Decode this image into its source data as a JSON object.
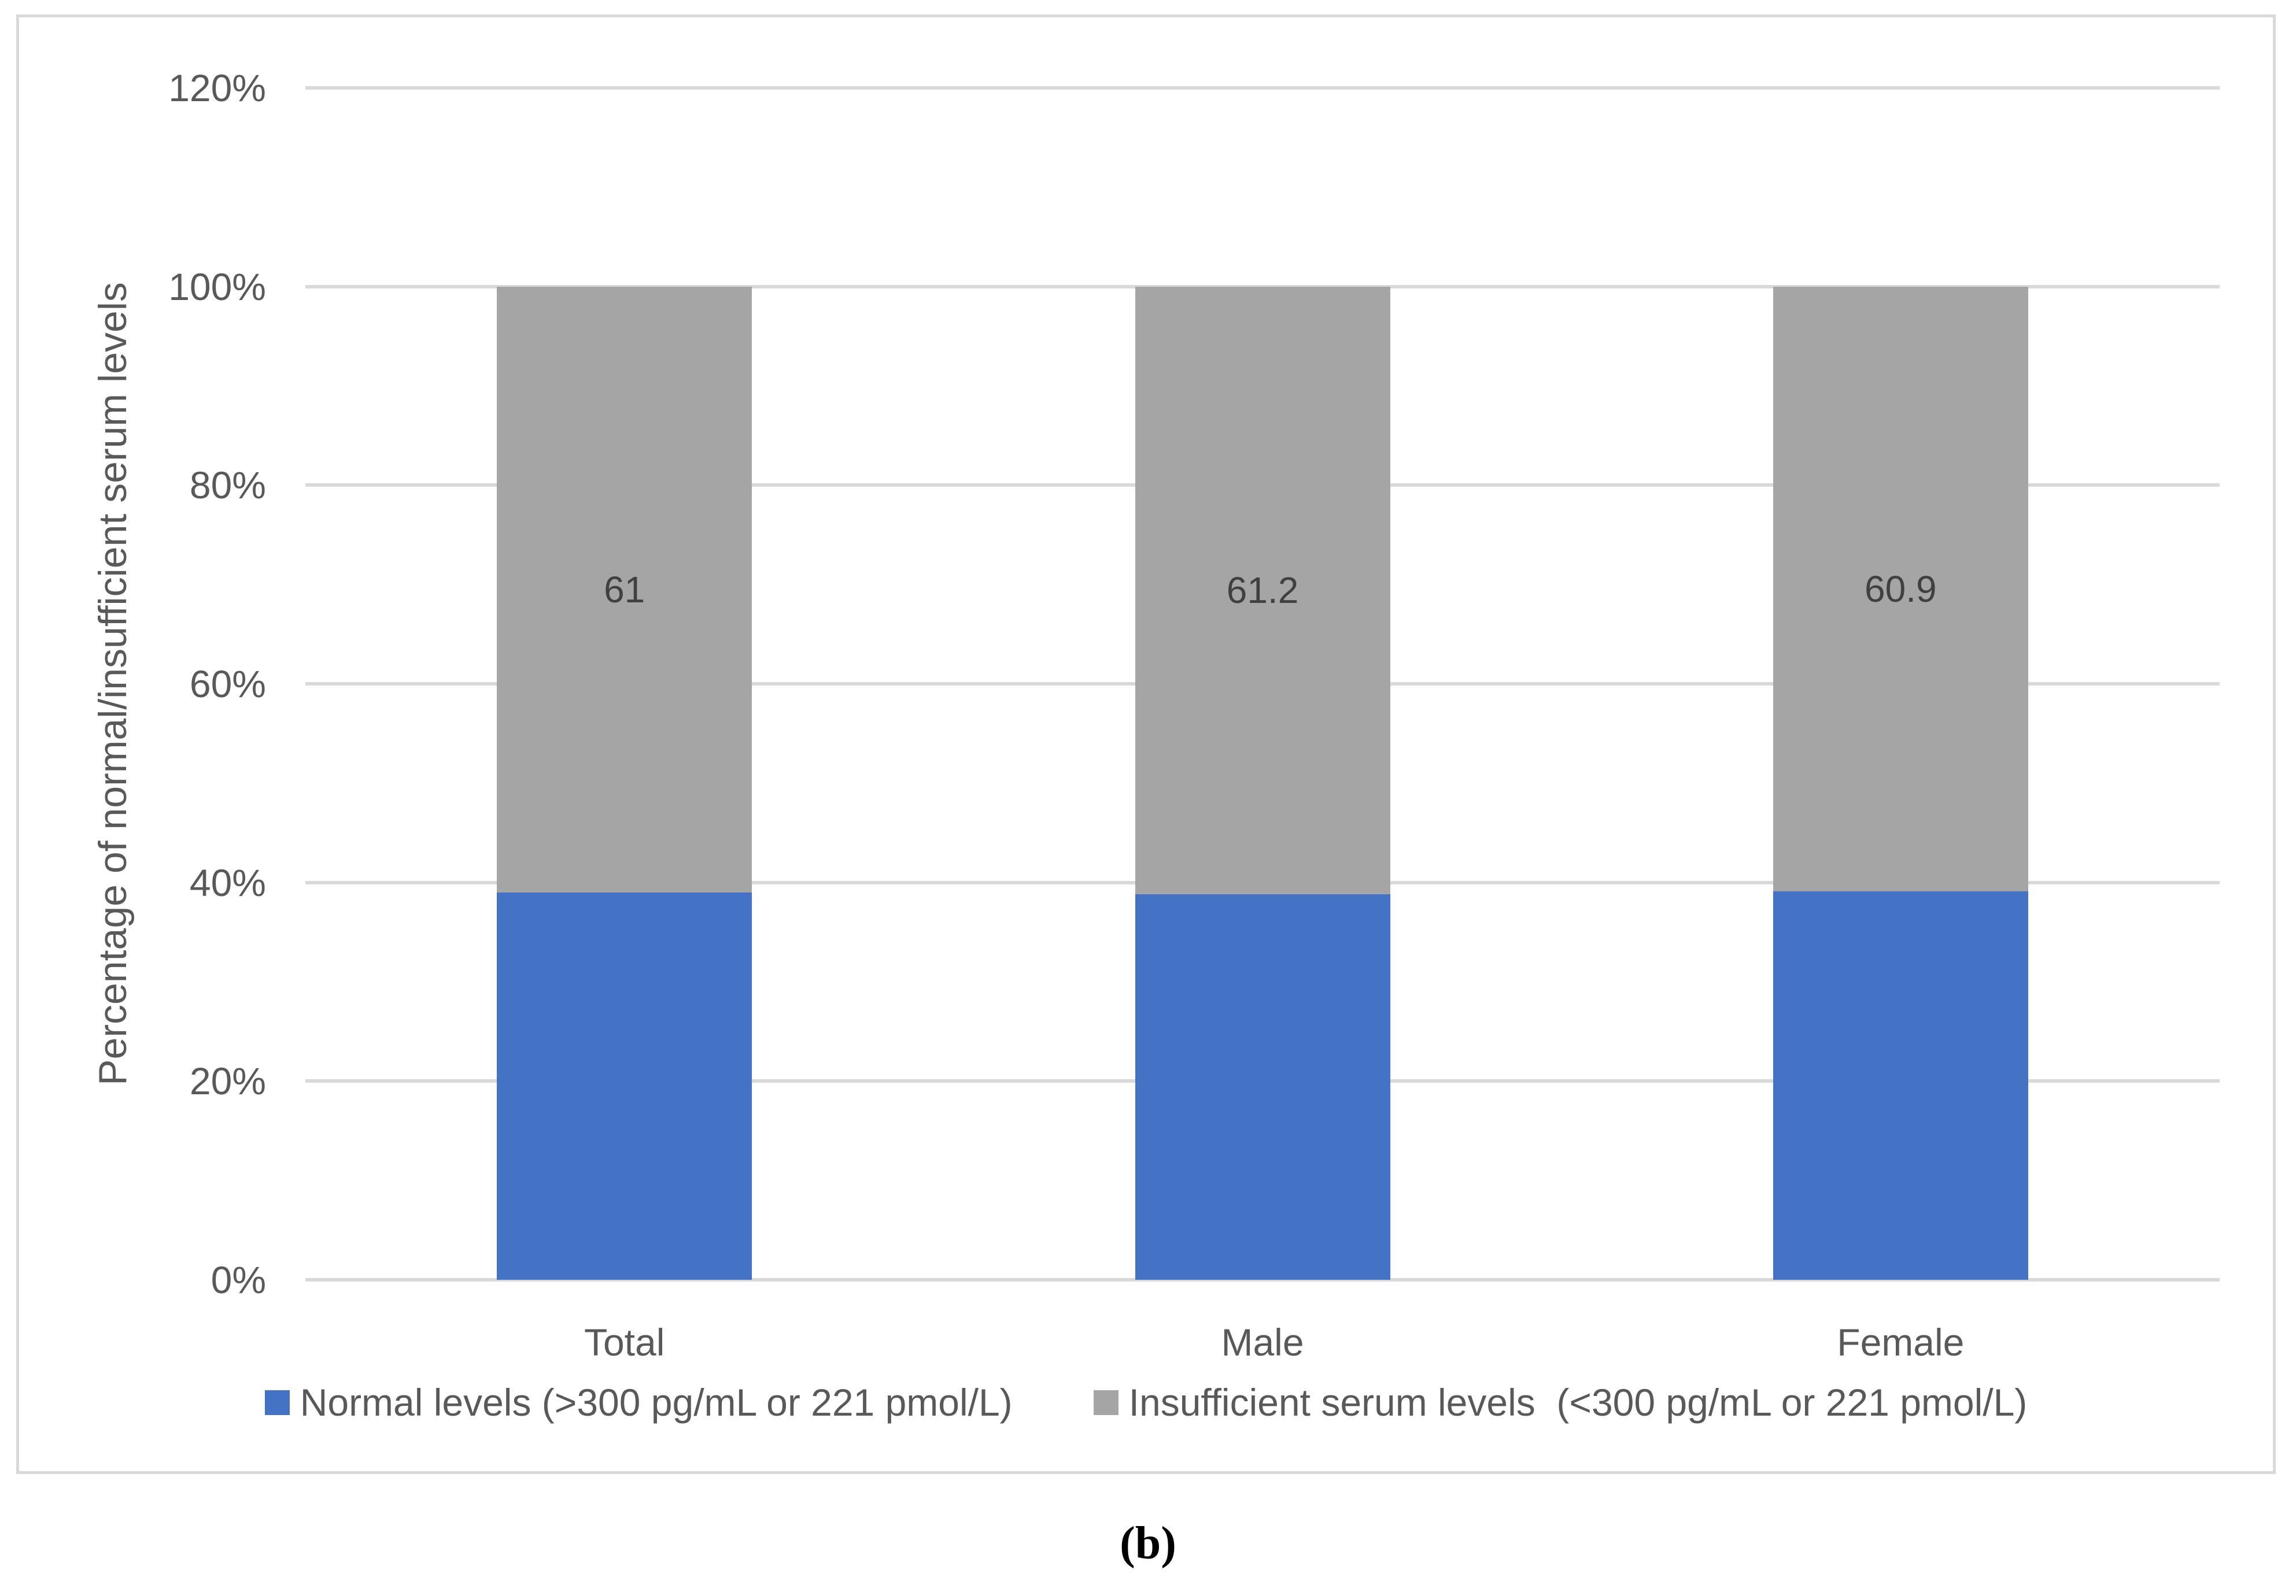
{
  "figure": {
    "caption": "(b)"
  },
  "style": {
    "frame_border_color": "#d9d9d9",
    "gridline_color": "#d9d9d9",
    "axis_text_color": "#595959",
    "data_label_color": "#404040",
    "normal_color": "#4472C4",
    "insufficient_color": "#A5A5A5"
  },
  "chart_data": {
    "type": "bar",
    "stacked": true,
    "title": "",
    "xlabel": "",
    "ylabel": "Percentage of normal/insufficient serum levels",
    "categories": [
      "Total",
      "Male",
      "Female"
    ],
    "series": [
      {
        "name": "Normal levels (>300 pg/mL or 221 pmol/L)",
        "color": "#4472C4",
        "values": [
          39,
          38.8,
          39.1
        ],
        "labels": [
          "",
          "",
          ""
        ]
      },
      {
        "name": "Insufficient serum levels  (<300 pg/mL or 221 pmol/L)",
        "color": "#A5A5A5",
        "values": [
          61,
          61.2,
          60.9
        ],
        "labels": [
          "61",
          "61.2",
          "60.9"
        ]
      }
    ],
    "y_axis": {
      "min": 0,
      "max": 120,
      "step": 20,
      "tick_labels": [
        "0%",
        "20%",
        "40%",
        "60%",
        "80%",
        "100%",
        "120%"
      ]
    },
    "grid": true,
    "legend_position": "bottom"
  }
}
